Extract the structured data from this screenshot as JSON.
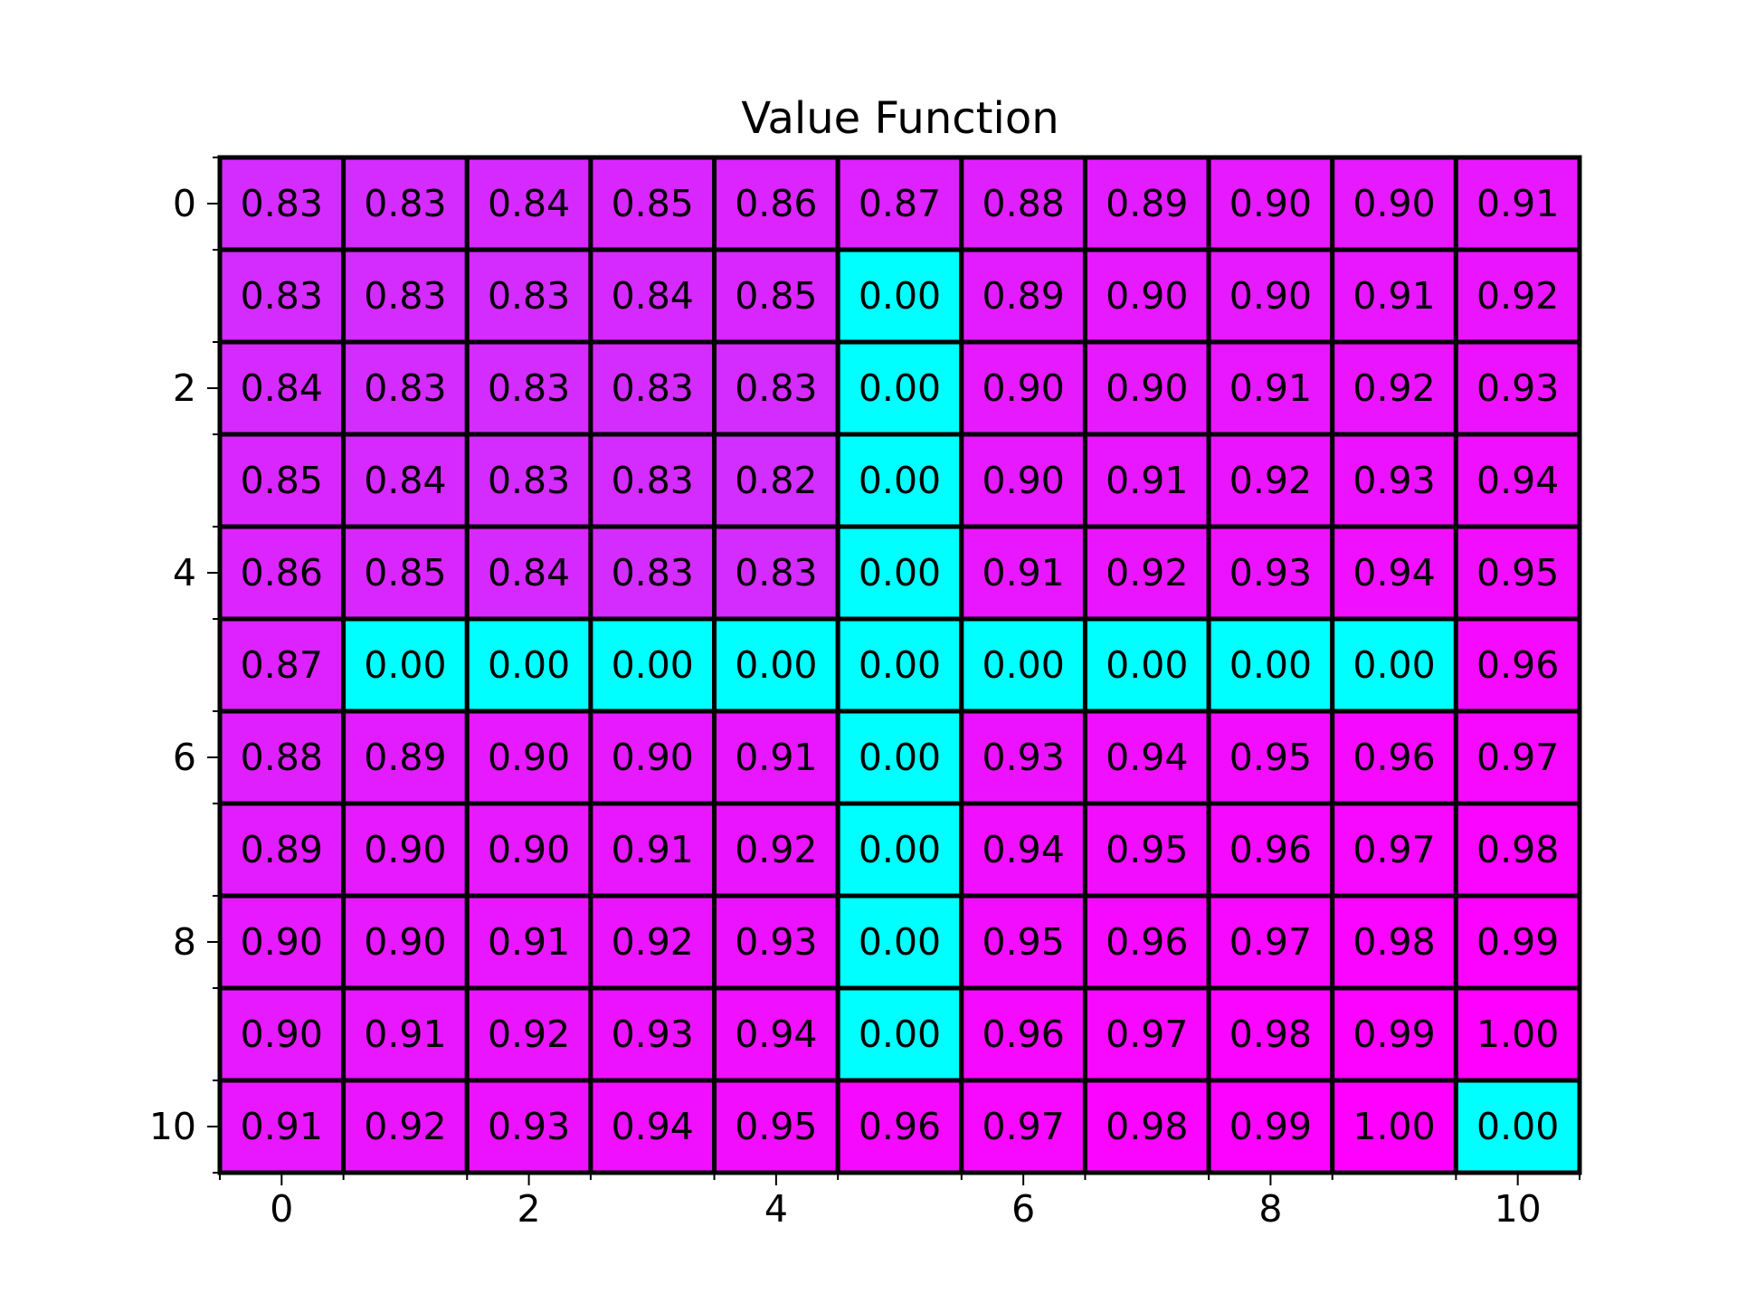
{
  "chart_data": {
    "type": "heatmap",
    "title": "Value Function",
    "xlabel": "",
    "ylabel": "",
    "x_tick_labels": [
      "0",
      "2",
      "4",
      "6",
      "8",
      "10"
    ],
    "y_tick_labels": [
      "0",
      "2",
      "4",
      "6",
      "8",
      "10"
    ],
    "x_ticks": [
      0,
      2,
      4,
      6,
      8,
      10
    ],
    "y_ticks": [
      0,
      2,
      4,
      6,
      8,
      10
    ],
    "xlim": [
      -0.5,
      10.5
    ],
    "ylim": [
      10.5,
      -0.5
    ],
    "colormap": "cool",
    "vmin": 0.0,
    "vmax": 1.0,
    "cell_border_color": "#000000",
    "grid": true,
    "values": [
      [
        0.83,
        0.83,
        0.84,
        0.85,
        0.86,
        0.87,
        0.88,
        0.89,
        0.9,
        0.9,
        0.91
      ],
      [
        0.83,
        0.83,
        0.83,
        0.84,
        0.85,
        0.0,
        0.89,
        0.9,
        0.9,
        0.91,
        0.92
      ],
      [
        0.84,
        0.83,
        0.83,
        0.83,
        0.83,
        0.0,
        0.9,
        0.9,
        0.91,
        0.92,
        0.93
      ],
      [
        0.85,
        0.84,
        0.83,
        0.83,
        0.82,
        0.0,
        0.9,
        0.91,
        0.92,
        0.93,
        0.94
      ],
      [
        0.86,
        0.85,
        0.84,
        0.83,
        0.83,
        0.0,
        0.91,
        0.92,
        0.93,
        0.94,
        0.95
      ],
      [
        0.87,
        0.0,
        0.0,
        0.0,
        0.0,
        0.0,
        0.0,
        0.0,
        0.0,
        0.0,
        0.96
      ],
      [
        0.88,
        0.89,
        0.9,
        0.9,
        0.91,
        0.0,
        0.93,
        0.94,
        0.95,
        0.96,
        0.97
      ],
      [
        0.89,
        0.9,
        0.9,
        0.91,
        0.92,
        0.0,
        0.94,
        0.95,
        0.96,
        0.97,
        0.98
      ],
      [
        0.9,
        0.9,
        0.91,
        0.92,
        0.93,
        0.0,
        0.95,
        0.96,
        0.97,
        0.98,
        0.99
      ],
      [
        0.9,
        0.91,
        0.92,
        0.93,
        0.94,
        0.0,
        0.96,
        0.97,
        0.98,
        0.99,
        1.0
      ],
      [
        0.91,
        0.92,
        0.93,
        0.94,
        0.95,
        0.96,
        0.97,
        0.98,
        0.99,
        1.0,
        0.0
      ]
    ]
  }
}
